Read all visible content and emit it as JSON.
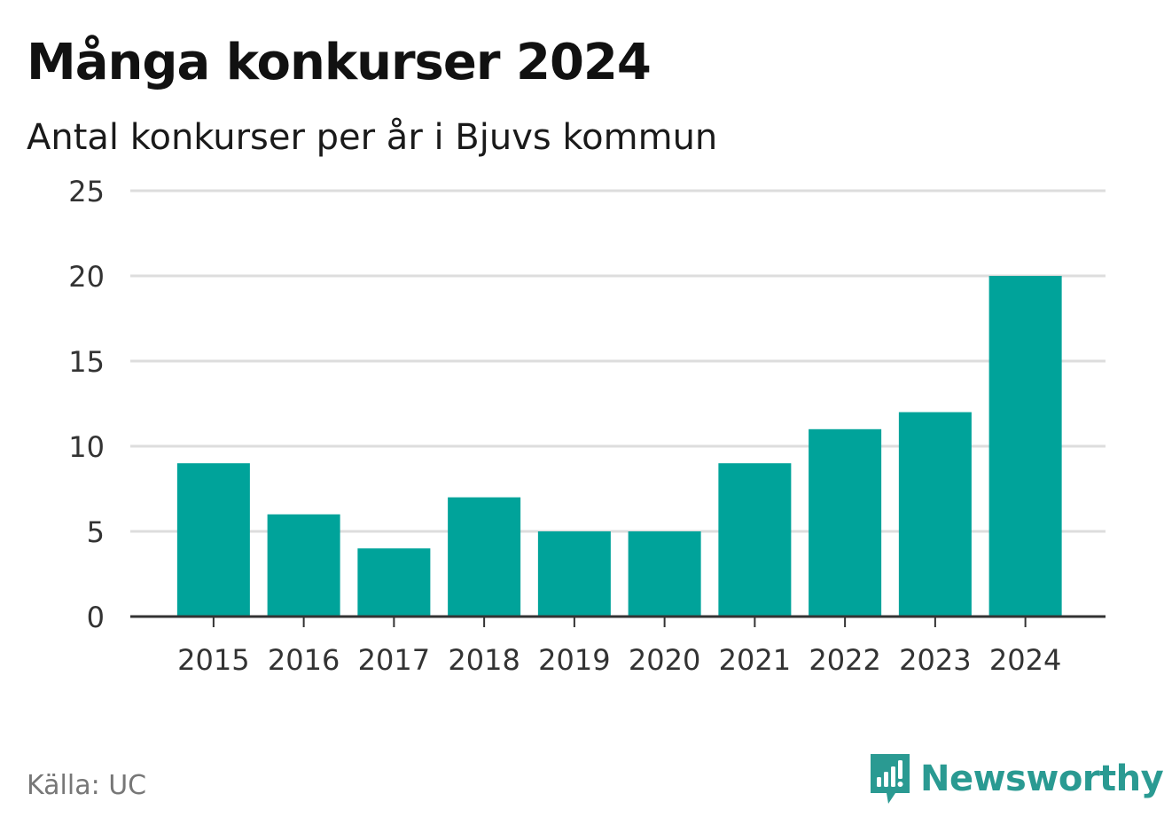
{
  "colors": {
    "bar": "#00a39a",
    "grid": "#dddddd",
    "axis": "#333333",
    "text": "#333333",
    "brand": "#2a9a92"
  },
  "header": {
    "title": "Många konkurser 2024",
    "subtitle": "Antal konkurser per år i Bjuvs kommun"
  },
  "footer": {
    "source": "Källa: UC",
    "brand_name": "Newsworthy",
    "brand_icon": "newsworthy-logo-icon"
  },
  "chart_data": {
    "type": "bar",
    "title": "Många konkurser 2024",
    "subtitle": "Antal konkurser per år i Bjuvs kommun",
    "xlabel": "",
    "ylabel": "",
    "categories": [
      "2015",
      "2016",
      "2017",
      "2018",
      "2019",
      "2020",
      "2021",
      "2022",
      "2023",
      "2024"
    ],
    "values": [
      9,
      6,
      4,
      7,
      5,
      5,
      9,
      11,
      12,
      20
    ],
    "ylim": [
      0,
      25
    ],
    "yticks": [
      0,
      5,
      10,
      15,
      20,
      25
    ],
    "grid": true,
    "legend": "none"
  }
}
